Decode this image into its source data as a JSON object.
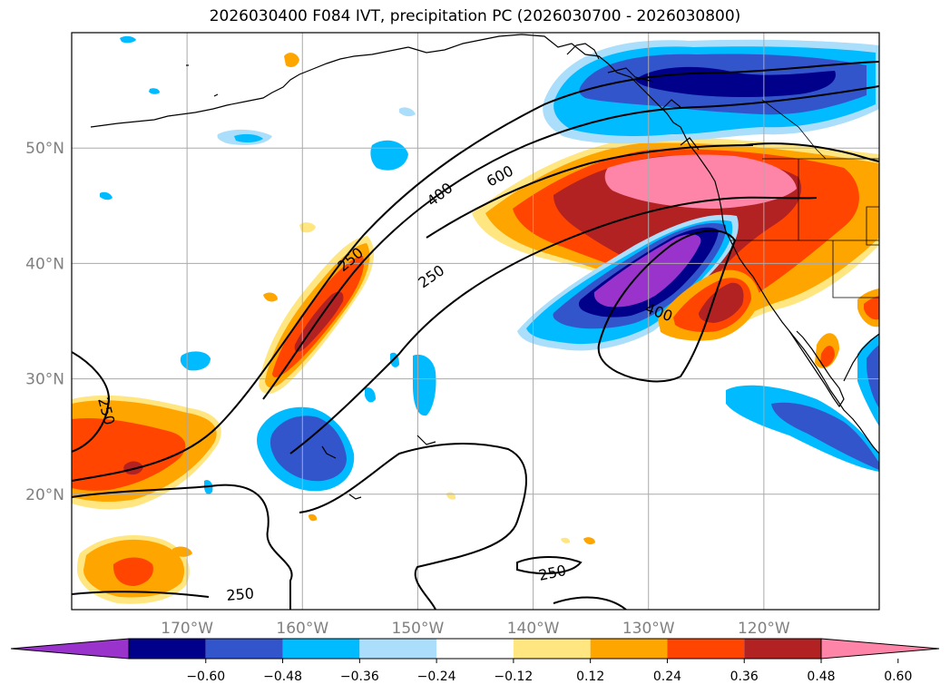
{
  "title": "2026030400 F084 IVT, precipitation PC (2026030700 - 2026030800)",
  "map": {
    "lat_labels": [
      "50°N",
      "40°N",
      "30°N",
      "20°N"
    ],
    "lat_values": [
      50,
      40,
      30,
      20
    ],
    "lon_labels": [
      "170°W",
      "160°W",
      "150°W",
      "140°W",
      "130°W",
      "120°W"
    ],
    "lon_values": [
      -170,
      -160,
      -150,
      -140,
      -130,
      -120
    ],
    "extent": {
      "lon_min": -180,
      "lon_max": -110,
      "lat_min": 10,
      "lat_max": 60
    },
    "contour_labels": [
      "250",
      "250",
      "400",
      "600",
      "250",
      "400",
      "250",
      "250"
    ]
  },
  "colorbar": {
    "ticks": [
      "−0.60",
      "−0.48",
      "−0.36",
      "−0.24",
      "−0.12",
      "0.12",
      "0.24",
      "0.36",
      "0.48",
      "0.60"
    ],
    "colors": [
      "#9933cc",
      "#00008b",
      "#3355cc",
      "#00bbff",
      "#aadefa",
      "#ffffff",
      "#ffe680",
      "#ffa500",
      "#ff4500",
      "#b22222",
      "#ff85a8"
    ]
  }
}
